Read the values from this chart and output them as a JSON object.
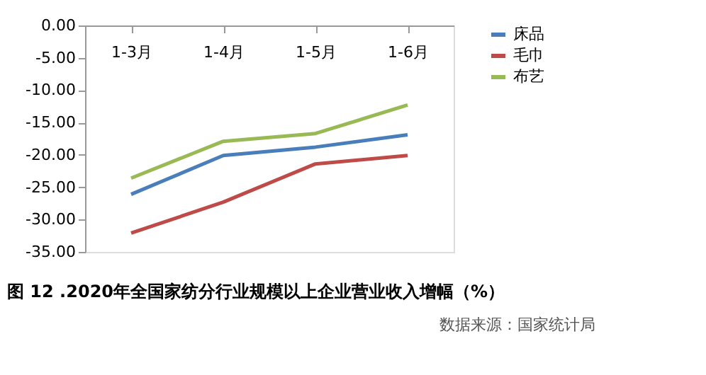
{
  "chart_data": {
    "type": "line",
    "title": "图 12 .2020年全国家纺分行业规模以上企业营业收入增幅（%）",
    "annotations": [
      "数据来源：国家统计局"
    ],
    "categories": [
      "1-3月",
      "1-4月",
      "1-5月",
      "1-6月"
    ],
    "series": [
      {
        "name": "床品",
        "color": "#4a7ebb",
        "values": [
          -26.1,
          -20.1,
          -18.8,
          -16.9
        ]
      },
      {
        "name": "毛巾",
        "color": "#be4b48",
        "values": [
          -32.1,
          -27.3,
          -21.4,
          -20.1
        ]
      },
      {
        "name": "布艺",
        "color": "#98b954",
        "values": [
          -23.6,
          -17.9,
          -16.7,
          -12.3
        ]
      }
    ],
    "ylim": [
      -35,
      0
    ],
    "yticks": [
      {
        "value": 0,
        "label": "0.00"
      },
      {
        "value": -5,
        "label": "-5.00"
      },
      {
        "value": -10,
        "label": "-10.00"
      },
      {
        "value": -15,
        "label": "-15.00"
      },
      {
        "value": -20,
        "label": "-20.00"
      },
      {
        "value": -25,
        "label": "-25.00"
      },
      {
        "value": -30,
        "label": "-30.00"
      },
      {
        "value": -35,
        "label": "-35.00"
      }
    ],
    "grid": false,
    "legend": "right",
    "marker": "none",
    "line_style": "solid"
  }
}
